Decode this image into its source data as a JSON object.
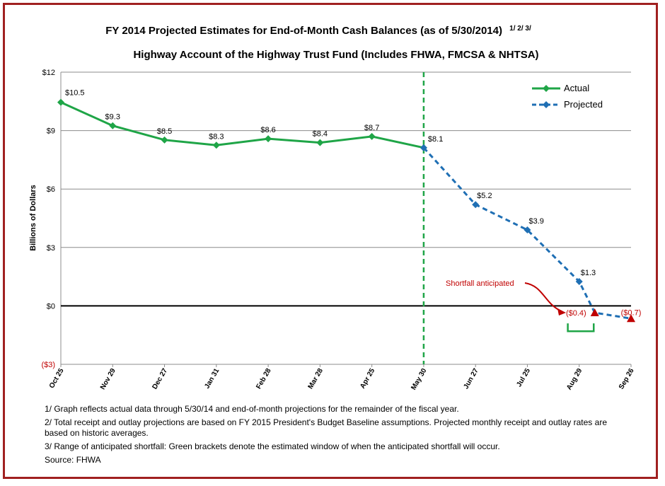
{
  "chart_data": {
    "type": "line",
    "title": "FY 2014 Projected Estimates for End-of-Month Cash Balances (as of 5/30/2014)",
    "title_superscript": "1/ 2/ 3/",
    "subtitle": "Highway Account of the Highway Trust Fund (Includes FHWA, FMCSA & NHTSA)",
    "ylabel": "Billions of Dollars",
    "ylim": [
      -3,
      12
    ],
    "yticks": [
      {
        "value": 12,
        "label": "$12"
      },
      {
        "value": 9,
        "label": "$9"
      },
      {
        "value": 6,
        "label": "$6"
      },
      {
        "value": 3,
        "label": "$3"
      },
      {
        "value": 0,
        "label": "$0"
      },
      {
        "value": -3,
        "label": "($3)"
      }
    ],
    "categories": [
      "Oct 25",
      "Nov 29",
      "Dec 27",
      "Jan 31",
      "Feb 28",
      "Mar 28",
      "Apr 25",
      "May 30",
      "Jun 27",
      "Jul 25",
      "Aug 29",
      "Sep 26"
    ],
    "series": [
      {
        "name": "Actual",
        "color": "#1fa547",
        "style": "solid",
        "points": [
          {
            "x": 0,
            "y": 10.45,
            "label": "$10.5"
          },
          {
            "x": 1,
            "y": 9.25,
            "label": "$9.3"
          },
          {
            "x": 2,
            "y": 8.52,
            "label": "$8.5"
          },
          {
            "x": 3,
            "y": 8.25,
            "label": "$8.3"
          },
          {
            "x": 4,
            "y": 8.58,
            "label": "$8.6"
          },
          {
            "x": 5,
            "y": 8.38,
            "label": "$8.4"
          },
          {
            "x": 6,
            "y": 8.7,
            "label": "$8.7"
          },
          {
            "x": 7,
            "y": 8.12,
            "label": "$8.1"
          }
        ]
      },
      {
        "name": "Projected",
        "color": "#1f6fb4",
        "style": "dashed",
        "points": [
          {
            "x": 7,
            "y": 8.12,
            "label": ""
          },
          {
            "x": 8,
            "y": 5.2,
            "label": "$5.2"
          },
          {
            "x": 9,
            "y": 3.9,
            "label": "$3.9"
          },
          {
            "x": 10,
            "y": 1.25,
            "label": "$1.3"
          },
          {
            "x": 10.3,
            "y": -0.35,
            "label": "($0.4)"
          },
          {
            "x": 11,
            "y": -0.65,
            "label": "($0.7)"
          }
        ]
      }
    ],
    "vertical_marker": {
      "x": 7,
      "color": "#1fa547",
      "style": "dashed"
    },
    "shortfall_markers": [
      {
        "x": 10.3,
        "y": -0.35
      },
      {
        "x": 11,
        "y": -0.65
      }
    ],
    "annotation": {
      "text": "Shortfall anticipated",
      "color": "#c00000"
    },
    "bracket": {
      "x_from": 9.78,
      "x_to": 10.28,
      "color": "#1fa547"
    },
    "legend_position": "top-right",
    "grid": true
  },
  "notes": [
    "1/ Graph reflects actual data through 5/30/14 and end-of-month projections for the remainder of the fiscal year.",
    "2/ Total receipt and outlay projections are based on FY 2015 President's Budget Baseline assumptions.  Projected monthly receipt and outlay rates are based on historic averages.",
    "3/ Range of anticipated shortfall: Green brackets denote the estimated window of when the anticipated shortfall will occur.",
    "Source: FHWA"
  ]
}
